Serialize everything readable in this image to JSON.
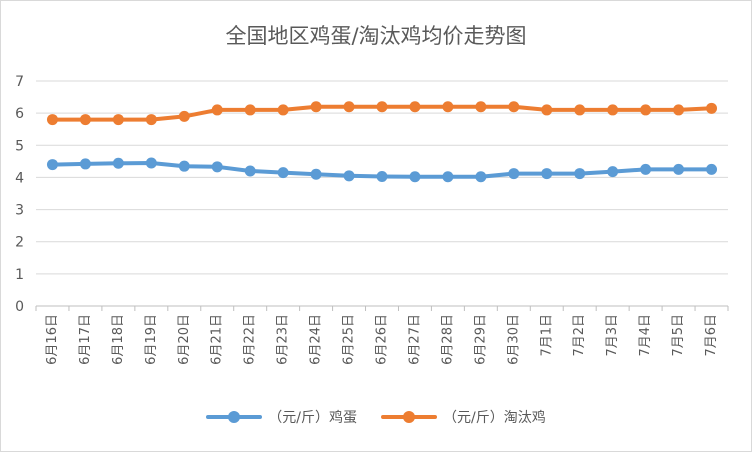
{
  "chart_data": {
    "type": "line",
    "title": "全国地区鸡蛋/淘汰鸡均价走势图",
    "xlabel": "",
    "ylabel": "",
    "ylim": [
      0,
      7
    ],
    "yticks": [
      "0",
      "1",
      "2",
      "3",
      "4",
      "5",
      "6",
      "7"
    ],
    "grid": true,
    "legend_position": "bottom",
    "categories": [
      "6月16日",
      "6月17日",
      "6月18日",
      "6月19日",
      "6月20日",
      "6月21日",
      "6月22日",
      "6月23日",
      "6月24日",
      "6月25日",
      "6月26日",
      "6月27日",
      "6月28日",
      "6月29日",
      "6月30日",
      "7月1日",
      "7月2日",
      "7月3日",
      "7月4日",
      "7月5日",
      "7月6日"
    ],
    "series": [
      {
        "name": "（元/斤）鸡蛋",
        "color": "#5b9bd5",
        "values": [
          4.4,
          4.42,
          4.44,
          4.45,
          4.35,
          4.33,
          4.2,
          4.15,
          4.1,
          4.05,
          4.03,
          4.02,
          4.02,
          4.02,
          4.12,
          4.12,
          4.12,
          4.18,
          4.25,
          4.25,
          4.25
        ]
      },
      {
        "name": "（元/斤）淘汰鸡",
        "color": "#ed7d31",
        "values": [
          5.8,
          5.8,
          5.8,
          5.8,
          5.9,
          6.1,
          6.1,
          6.1,
          6.2,
          6.2,
          6.2,
          6.2,
          6.2,
          6.2,
          6.2,
          6.1,
          6.1,
          6.1,
          6.1,
          6.1,
          6.15
        ]
      }
    ]
  }
}
